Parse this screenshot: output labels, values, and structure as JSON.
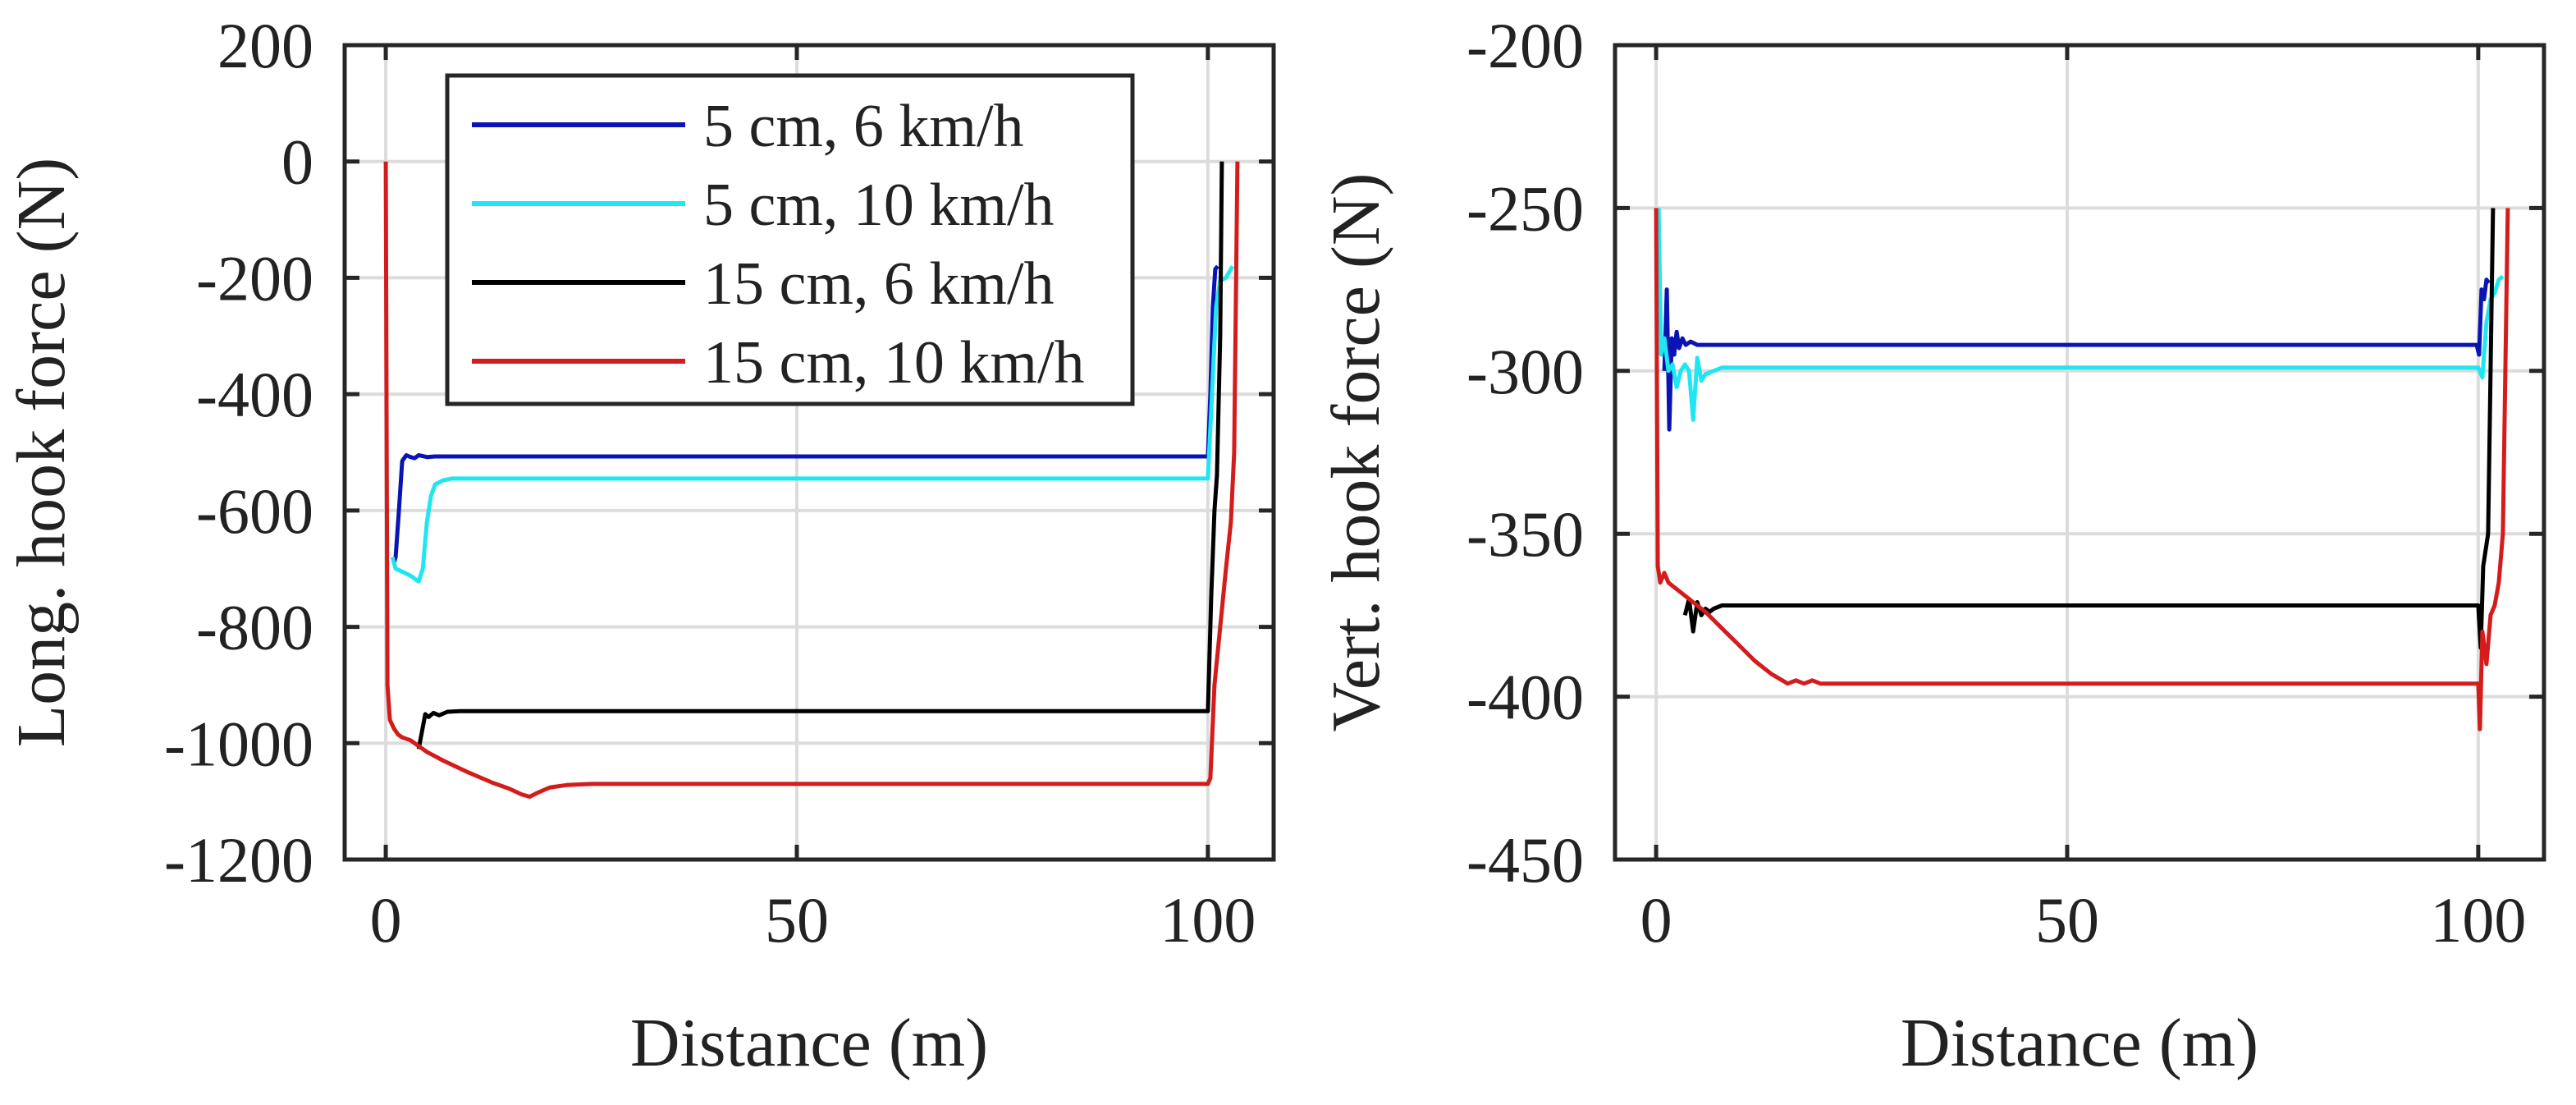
{
  "figure": {
    "description_free": true
  },
  "legend": {
    "entries": [
      {
        "label": "5 cm, 6 km/h",
        "color": "#0a14b4"
      },
      {
        "label": "5 cm, 10 km/h",
        "color": "#1fe6f0"
      },
      {
        "label": "15 cm, 6 km/h",
        "color": "#000000"
      },
      {
        "label": "15 cm, 10 km/h",
        "color": "#d41c1c"
      }
    ]
  },
  "chart_data": [
    {
      "type": "line",
      "title": "",
      "xlabel": "Distance (m)",
      "ylabel": "Long. hook force (N)",
      "xlim": [
        -5,
        108
      ],
      "ylim": [
        -1200,
        200
      ],
      "xticks": [
        0,
        50,
        100
      ],
      "yticks": [
        200,
        0,
        -200,
        -400,
        -600,
        -800,
        -1000,
        -1200
      ],
      "grid": true,
      "legend_position": "top-center",
      "series": [
        {
          "name": "5 cm, 6 km/h",
          "color": "#0a14b4",
          "x": [
            1.0,
            1.2,
            1.6,
            2.0,
            2.5,
            3.0,
            3.5,
            4.0,
            5.0,
            6.0,
            20,
            40,
            60,
            80,
            100,
            100.3,
            100.6,
            100.9,
            101.2
          ],
          "y": [
            -690,
            -680,
            -600,
            -515,
            -505,
            -508,
            -510,
            -505,
            -508,
            -507,
            -507,
            -507,
            -507,
            -507,
            -507,
            -400,
            -250,
            -185,
            -180
          ]
        },
        {
          "name": "5 cm, 10 km/h",
          "color": "#1fe6f0",
          "x": [
            0.8,
            1.2,
            2.0,
            3.0,
            4.0,
            4.5,
            5.0,
            5.5,
            6.0,
            7.0,
            8.0,
            20,
            40,
            60,
            80,
            100,
            100.5,
            101,
            101.5,
            102.2,
            103
          ],
          "y": [
            -680,
            -700,
            -705,
            -712,
            -722,
            -700,
            -620,
            -575,
            -555,
            -548,
            -545,
            -545,
            -545,
            -545,
            -545,
            -545,
            -400,
            -250,
            -205,
            -200,
            -180
          ]
        },
        {
          "name": "15 cm, 6 km/h",
          "color": "#000000",
          "x": [
            4.0,
            4.4,
            4.8,
            5.2,
            5.8,
            6.5,
            7.5,
            9.0,
            20,
            40,
            60,
            80,
            100,
            100.4,
            100.8,
            101.1,
            101.5,
            101.7
          ],
          "y": [
            -1010,
            -980,
            -950,
            -955,
            -948,
            -952,
            -946,
            -945,
            -945,
            -945,
            -945,
            -945,
            -945,
            -750,
            -600,
            -540,
            -300,
            0
          ]
        },
        {
          "name": "15 cm, 10 km/h",
          "color": "#d41c1c",
          "x": [
            0,
            0.2,
            0.5,
            1.0,
            1.5,
            2.0,
            3.0,
            4.0,
            5.0,
            7.0,
            10.0,
            13.0,
            15.0,
            16.5,
            17.5,
            18.5,
            20.0,
            22.0,
            25.0,
            40,
            60,
            80,
            100,
            100.3,
            100.8,
            101.5,
            102.2,
            102.8,
            103.2,
            103.6
          ],
          "y": [
            0,
            -900,
            -960,
            -975,
            -985,
            -990,
            -995,
            -1005,
            -1015,
            -1030,
            -1050,
            -1068,
            -1078,
            -1088,
            -1092,
            -1085,
            -1076,
            -1072,
            -1070,
            -1070,
            -1070,
            -1070,
            -1070,
            -1060,
            -900,
            -800,
            -700,
            -620,
            -500,
            0
          ]
        }
      ]
    },
    {
      "type": "line",
      "title": "",
      "xlabel": "Distance (m)",
      "ylabel": "Vert. hook force (N)",
      "xlim": [
        -5,
        108
      ],
      "ylim": [
        -450,
        -200
      ],
      "xticks": [
        0,
        50,
        100
      ],
      "yticks": [
        -200,
        -250,
        -300,
        -350,
        -400,
        -450
      ],
      "grid": true,
      "legend_position": "none",
      "series": [
        {
          "name": "5 cm, 6 km/h",
          "color": "#0a14b4",
          "x": [
            1.0,
            1.3,
            1.6,
            1.9,
            2.2,
            2.5,
            2.8,
            3.2,
            3.6,
            4.2,
            5.0,
            6.0,
            8.0,
            20,
            40,
            60,
            80,
            99.8,
            100.1,
            100.4,
            100.7,
            101.0,
            101.3
          ],
          "y": [
            -300,
            -275,
            -318,
            -290,
            -295,
            -288,
            -293,
            -290,
            -292,
            -291,
            -292,
            -292,
            -292,
            -292,
            -292,
            -292,
            -292,
            -292,
            -295,
            -275,
            -278,
            -272,
            -273
          ]
        },
        {
          "name": "5 cm, 10 km/h",
          "color": "#1fe6f0",
          "x": [
            0.3,
            0.6,
            1.0,
            1.5,
            2.0,
            2.5,
            3.0,
            3.5,
            4.0,
            4.5,
            5.0,
            5.5,
            6.0,
            7.0,
            8.0,
            20,
            40,
            60,
            80,
            100,
            100.5,
            101,
            101.5,
            102.0,
            102.5,
            103.0
          ],
          "y": [
            -250,
            -295,
            -290,
            -300,
            -298,
            -305,
            -300,
            -298,
            -300,
            -315,
            -296,
            -303,
            -301,
            -300,
            -299,
            -299,
            -299,
            -299,
            -299,
            -299,
            -302,
            -285,
            -278,
            -276,
            -272,
            -271
          ]
        },
        {
          "name": "15 cm, 6 km/h",
          "color": "#000000",
          "x": [
            3.5,
            4.0,
            4.5,
            5.0,
            5.5,
            6.0,
            6.5,
            7.0,
            8.0,
            10.0,
            20,
            40,
            60,
            80,
            100,
            100.3,
            100.6,
            100.9,
            101.2,
            101.5,
            101.8
          ],
          "y": [
            -375,
            -370,
            -380,
            -371,
            -375,
            -373,
            -374,
            -373,
            -372,
            -372,
            -372,
            -372,
            -372,
            -372,
            -372,
            -385,
            -360,
            -355,
            -350,
            -300,
            -250
          ]
        },
        {
          "name": "15 cm, 10 km/h",
          "color": "#d41c1c",
          "x": [
            0,
            0.2,
            0.5,
            1.0,
            1.5,
            2.0,
            3.0,
            4.0,
            6.0,
            8.0,
            10.0,
            12.0,
            14.0,
            16.0,
            17.0,
            18.0,
            19.0,
            20.0,
            22.0,
            25.0,
            40,
            60,
            80,
            100,
            100.2,
            100.5,
            101.0,
            101.5,
            102.0,
            102.5,
            103.0,
            103.6
          ],
          "y": [
            -250,
            -360,
            -365,
            -362,
            -365,
            -366,
            -368,
            -370,
            -374,
            -379,
            -384,
            -389,
            -393,
            -396,
            -395,
            -396,
            -395,
            -396,
            -396,
            -396,
            -396,
            -396,
            -396,
            -396,
            -410,
            -380,
            -390,
            -375,
            -372,
            -365,
            -350,
            -250
          ]
        }
      ]
    }
  ]
}
